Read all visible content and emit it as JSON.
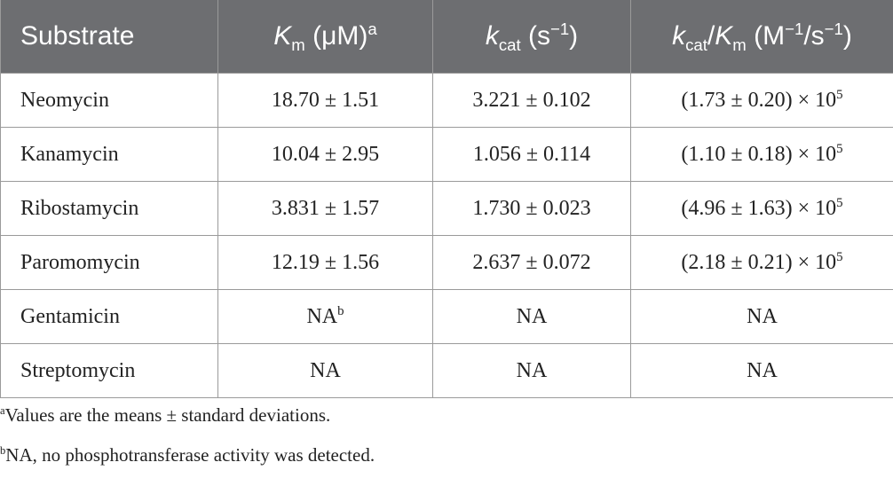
{
  "table": {
    "header": [
      [
        "Substrate"
      ],
      [
        "K",
        "m",
        " (μM)",
        "a"
      ],
      [
        "k",
        "cat",
        " (s",
        "−1",
        ")"
      ],
      [
        "k",
        "cat",
        "/",
        "K",
        "m",
        " (M",
        "−1",
        "/s",
        "−1",
        ")"
      ]
    ],
    "rows": [
      [
        "Neomycin",
        "18.70 ± 1.51",
        "3.221 ± 0.102",
        [
          "(1.73 ± 0.20) × 10",
          "5"
        ]
      ],
      [
        "Kanamycin",
        "10.04 ± 2.95",
        "1.056 ± 0.114",
        [
          "(1.10 ± 0.18) × 10",
          "5"
        ]
      ],
      [
        "Ribostamycin",
        "3.831 ± 1.57",
        "1.730 ± 0.023",
        [
          "(4.96 ± 1.63) × 10",
          "5"
        ]
      ],
      [
        "Paromomycin",
        "12.19 ± 1.56",
        "2.637 ± 0.072",
        [
          "(2.18 ± 0.21) × 10",
          "5"
        ]
      ],
      [
        "Gentamicin",
        [
          "NA",
          "b"
        ],
        "NA",
        "NA"
      ],
      [
        "Streptomycin",
        "NA",
        "NA",
        "NA"
      ]
    ]
  },
  "footnotes": [
    [
      "a",
      "Values are the means ± standard deviations."
    ],
    [
      "b",
      "NA, no phosphotransferase activity was detected."
    ]
  ]
}
